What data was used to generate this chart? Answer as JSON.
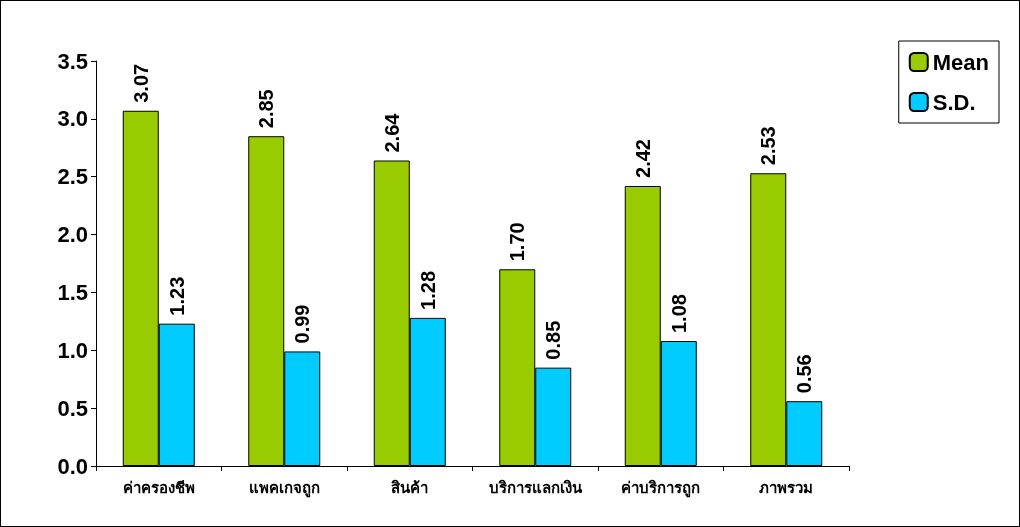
{
  "chart_data": {
    "type": "bar",
    "categories": [
      "ค่าครองชีพ",
      "แพคเกจถูก",
      "สินค้า",
      "บริการแลกเงิน",
      "ค่าบริการถูก",
      "ภาพรวม"
    ],
    "series": [
      {
        "name": "Mean",
        "color": "#99cc00",
        "values": [
          3.07,
          2.85,
          2.64,
          1.7,
          2.42,
          2.53
        ],
        "value_labels": [
          "3.07",
          "2.85",
          "2.64",
          "1.70",
          "2.42",
          "2.53"
        ]
      },
      {
        "name": "S.D.",
        "color": "#00ccff",
        "values": [
          1.23,
          0.99,
          1.28,
          0.85,
          1.08,
          0.56
        ],
        "value_labels": [
          "1.23",
          "0.99",
          "1.28",
          "0.85",
          "1.08",
          "0.56"
        ]
      }
    ],
    "ylim": [
      0,
      3.5
    ],
    "yticks": [
      {
        "value": 0,
        "label": "0.0"
      },
      {
        "value": 0.5,
        "label": "0.5"
      },
      {
        "value": 1,
        "label": "1.0"
      },
      {
        "value": 1.5,
        "label": "1.5"
      },
      {
        "value": 2,
        "label": "2.0"
      },
      {
        "value": 2.5,
        "label": "2.5"
      },
      {
        "value": 3,
        "label": "3.0"
      },
      {
        "value": 3.5,
        "label": "3.5"
      }
    ],
    "grid": false,
    "legend": "top right"
  }
}
